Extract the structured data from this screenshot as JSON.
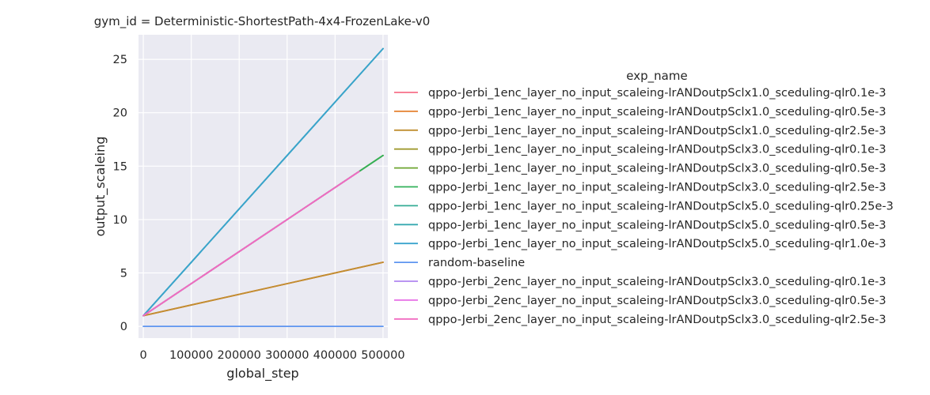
{
  "chart_data": {
    "type": "line",
    "title": "gym_id = Deterministic-ShortestPath-4x4-FrozenLake-v0",
    "xlabel": "global_step",
    "ylabel": "output_scaleing",
    "xlim": [
      -10000,
      510000
    ],
    "ylim": [
      -1.1,
      27.3
    ],
    "x_ticks": [
      0,
      100000,
      200000,
      300000,
      400000,
      500000
    ],
    "x_tick_labels": [
      "0",
      "100000",
      "200000",
      "300000",
      "400000",
      "500000"
    ],
    "y_ticks": [
      0,
      5,
      10,
      15,
      20,
      25
    ],
    "y_tick_labels": [
      "0",
      "5",
      "10",
      "15",
      "20",
      "25"
    ],
    "grid": true,
    "legend_title": "exp_name",
    "legend_position": "right",
    "series": [
      {
        "name": "qppo-Jerbi_1enc_layer_no_input_scaleing-lrANDoutpSclx1.0_sceduling-qlr0.1e-3",
        "color": "#f77189",
        "x": [
          0,
          500000
        ],
        "y": [
          1,
          6
        ]
      },
      {
        "name": "qppo-Jerbi_1enc_layer_no_input_scaleing-lrANDoutpSclx1.0_sceduling-qlr0.5e-3",
        "color": "#e5802f",
        "x": [
          0,
          500000
        ],
        "y": [
          1,
          6
        ]
      },
      {
        "name": "qppo-Jerbi_1enc_layer_no_input_scaleing-lrANDoutpSclx1.0_sceduling-qlr2.5e-3",
        "color": "#c08f31",
        "x": [
          0,
          500000
        ],
        "y": [
          1,
          6
        ]
      },
      {
        "name": "qppo-Jerbi_1enc_layer_no_input_scaleing-lrANDoutpSclx3.0_sceduling-qlr0.1e-3",
        "color": "#a09b31",
        "x": [
          0,
          500000
        ],
        "y": [
          1,
          16
        ]
      },
      {
        "name": "qppo-Jerbi_1enc_layer_no_input_scaleing-lrANDoutpSclx3.0_sceduling-qlr0.5e-3",
        "color": "#6ea531",
        "x": [
          0,
          500000
        ],
        "y": [
          1,
          16
        ]
      },
      {
        "name": "qppo-Jerbi_1enc_layer_no_input_scaleing-lrANDoutpSclx3.0_sceduling-qlr2.5e-3",
        "color": "#32b15a",
        "x": [
          0,
          500000
        ],
        "y": [
          1,
          16
        ]
      },
      {
        "name": "qppo-Jerbi_1enc_layer_no_input_scaleing-lrANDoutpSclx5.0_sceduling-qlr0.25e-3",
        "color": "#35ac95",
        "x": [
          0,
          500000
        ],
        "y": [
          1,
          26
        ]
      },
      {
        "name": "qppo-Jerbi_1enc_layer_no_input_scaleing-lrANDoutpSclx5.0_sceduling-qlr0.5e-3",
        "color": "#37a9b0",
        "x": [
          0,
          500000
        ],
        "y": [
          1,
          26
        ]
      },
      {
        "name": "qppo-Jerbi_1enc_layer_no_input_scaleing-lrANDoutpSclx5.0_sceduling-qlr1.0e-3",
        "color": "#3aa3cd",
        "x": [
          0,
          500000
        ],
        "y": [
          1,
          26
        ]
      },
      {
        "name": "random-baseline",
        "color": "#5e95f0",
        "x": [
          0,
          500000
        ],
        "y": [
          0,
          0
        ]
      },
      {
        "name": "qppo-Jerbi_2enc_layer_no_input_scaleing-lrANDoutpSclx3.0_sceduling-qlr0.1e-3",
        "color": "#b086f0",
        "x": [
          0,
          450000
        ],
        "y": [
          1,
          14.5
        ]
      },
      {
        "name": "qppo-Jerbi_2enc_layer_no_input_scaleing-lrANDoutpSclx3.0_sceduling-qlr0.5e-3",
        "color": "#e76ee6",
        "x": [
          0,
          450000
        ],
        "y": [
          1,
          14.5
        ]
      },
      {
        "name": "qppo-Jerbi_2enc_layer_no_input_scaleing-lrANDoutpSclx3.0_sceduling-qlr2.5e-3",
        "color": "#f16bc0",
        "x": [
          0,
          450000
        ],
        "y": [
          1,
          14.5
        ]
      }
    ]
  }
}
